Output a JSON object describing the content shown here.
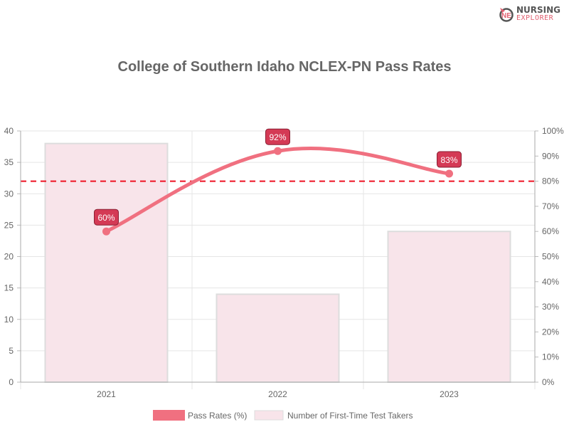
{
  "logo": {
    "line1": "NURSING",
    "line2": "EXPLORER"
  },
  "chart_data": {
    "type": "bar+line",
    "title": "College of Southern Idaho NCLEX-PN Pass Rates",
    "categories": [
      "2021",
      "2022",
      "2023"
    ],
    "series": [
      {
        "name": "Pass Rates (%)",
        "type": "line",
        "axis": "right",
        "values": [
          60,
          92,
          83
        ],
        "labels": [
          "60%",
          "92%",
          "83%"
        ],
        "color": "#f07080"
      },
      {
        "name": "Number of First-Time Test Takers",
        "type": "bar",
        "axis": "left",
        "values": [
          38,
          14,
          24
        ],
        "color": "#f8e4ea"
      }
    ],
    "left_axis": {
      "ylim": [
        0,
        40
      ],
      "ticks": [
        "0",
        "5",
        "10",
        "15",
        "20",
        "25",
        "30",
        "35",
        "40"
      ]
    },
    "right_axis": {
      "ylim": [
        0,
        100
      ],
      "ticks": [
        "0%",
        "10%",
        "20%",
        "30%",
        "40%",
        "50%",
        "60%",
        "70%",
        "80%",
        "90%",
        "100%"
      ]
    },
    "reference_line": {
      "value": 80,
      "axis": "right",
      "color": "#ee1122",
      "style": "dashed"
    },
    "grid": true,
    "legend_position": "bottom"
  }
}
